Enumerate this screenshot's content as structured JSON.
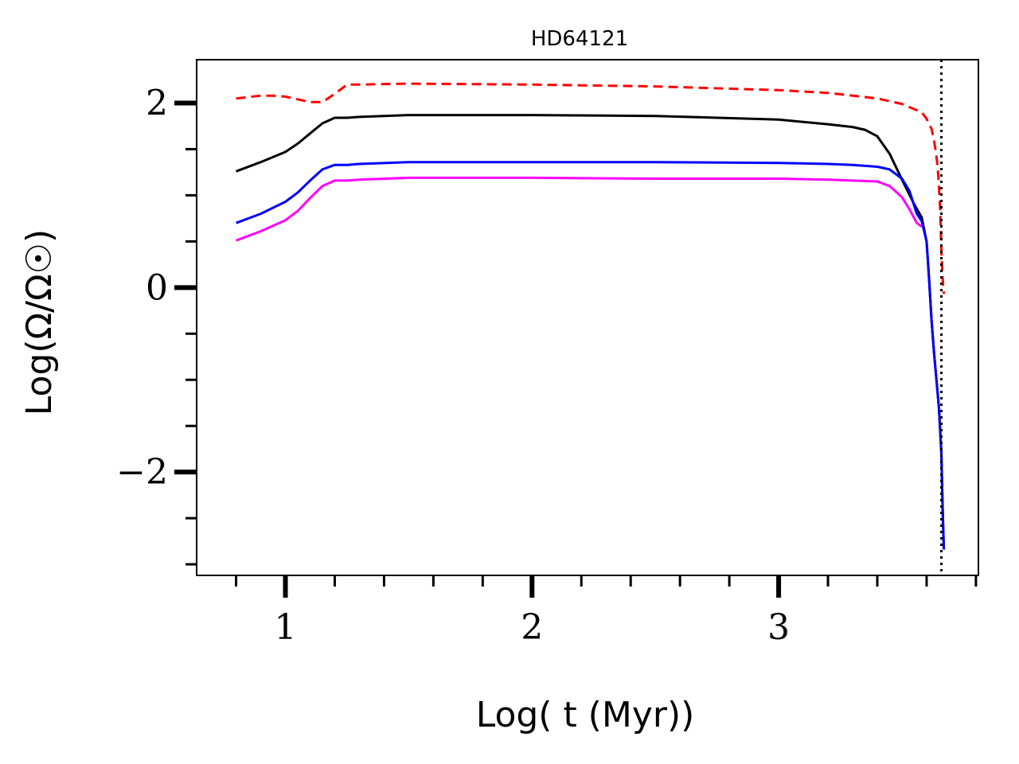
{
  "chart_data": {
    "type": "line",
    "title": "HD64121",
    "xlabel": "Log( t (Myr))",
    "ylabel": "Log(Ω/Ω☉)",
    "xlim": [
      0.64,
      3.81
    ],
    "ylim": [
      -3.12,
      2.47
    ],
    "xticks_major": [
      1,
      2,
      3
    ],
    "xtick_labels": [
      "1",
      "2",
      "3"
    ],
    "xticks_minor": [
      0.8,
      1.2,
      1.4,
      1.6,
      1.8,
      2.2,
      2.4,
      2.6,
      2.8,
      3.2,
      3.4,
      3.6,
      3.8
    ],
    "yticks_major": [
      2,
      0,
      -2
    ],
    "ytick_labels": [
      "2",
      "0",
      "−2"
    ],
    "yticks_minor": [
      1.5,
      1,
      0.5,
      -0.5,
      -1,
      -1.5,
      -2.5,
      -3
    ],
    "vline": {
      "x": 3.66,
      "style": "dotted",
      "color": "#000000"
    },
    "series": [
      {
        "name": "red-dashed",
        "color": "#ff0000",
        "dash": true,
        "x": [
          0.8,
          0.9,
          0.95,
          1.0,
          1.05,
          1.1,
          1.15,
          1.2,
          1.25,
          1.3,
          1.5,
          2.0,
          2.5,
          3.0,
          3.2,
          3.4,
          3.5,
          3.58,
          3.6,
          3.62,
          3.63,
          3.64,
          3.645,
          3.65,
          3.655,
          3.66,
          3.665,
          3.67
        ],
        "y": [
          2.05,
          2.08,
          2.08,
          2.07,
          2.04,
          2.01,
          2.01,
          2.1,
          2.2,
          2.2,
          2.21,
          2.2,
          2.18,
          2.14,
          2.11,
          2.05,
          1.99,
          1.9,
          1.83,
          1.72,
          1.6,
          1.42,
          1.3,
          1.1,
          0.85,
          0.4,
          0.1,
          -0.07
        ]
      },
      {
        "name": "black",
        "color": "#000000",
        "dash": false,
        "x": [
          0.8,
          0.9,
          1.0,
          1.05,
          1.1,
          1.15,
          1.2,
          1.25,
          1.3,
          1.4,
          1.5,
          2.0,
          2.5,
          3.0,
          3.2,
          3.3,
          3.35,
          3.4,
          3.45,
          3.5,
          3.55,
          3.58,
          3.6,
          3.61,
          3.62,
          3.63,
          3.64,
          3.65,
          3.66,
          3.665,
          3.67
        ],
        "y": [
          1.26,
          1.36,
          1.47,
          1.56,
          1.67,
          1.78,
          1.84,
          1.84,
          1.85,
          1.86,
          1.87,
          1.87,
          1.86,
          1.82,
          1.77,
          1.74,
          1.71,
          1.64,
          1.45,
          1.17,
          0.9,
          0.76,
          0.5,
          0.1,
          -0.35,
          -0.7,
          -1.0,
          -1.3,
          -1.8,
          -2.4,
          -2.84
        ]
      },
      {
        "name": "blue",
        "color": "#0000ff",
        "dash": false,
        "x": [
          0.8,
          0.9,
          1.0,
          1.05,
          1.1,
          1.15,
          1.2,
          1.25,
          1.3,
          1.5,
          2.0,
          2.5,
          3.0,
          3.2,
          3.3,
          3.4,
          3.45,
          3.5,
          3.53,
          3.56,
          3.58,
          3.6,
          3.61,
          3.62,
          3.63,
          3.64,
          3.65,
          3.66,
          3.665,
          3.67
        ],
        "y": [
          0.7,
          0.8,
          0.93,
          1.03,
          1.16,
          1.28,
          1.33,
          1.33,
          1.34,
          1.36,
          1.36,
          1.36,
          1.35,
          1.34,
          1.33,
          1.31,
          1.28,
          1.18,
          1.05,
          0.8,
          0.72,
          0.5,
          0.1,
          -0.35,
          -0.7,
          -1.0,
          -1.3,
          -1.8,
          -2.4,
          -2.84
        ]
      },
      {
        "name": "magenta",
        "color": "#ff00ff",
        "dash": false,
        "x": [
          0.8,
          0.9,
          1.0,
          1.05,
          1.1,
          1.15,
          1.2,
          1.25,
          1.3,
          1.5,
          2.0,
          2.5,
          3.0,
          3.2,
          3.4,
          3.45,
          3.5,
          3.53,
          3.56,
          3.58
        ],
        "y": [
          0.51,
          0.61,
          0.73,
          0.83,
          0.97,
          1.1,
          1.16,
          1.16,
          1.17,
          1.19,
          1.19,
          1.18,
          1.18,
          1.17,
          1.15,
          1.1,
          0.98,
          0.85,
          0.7,
          0.66
        ]
      }
    ]
  }
}
